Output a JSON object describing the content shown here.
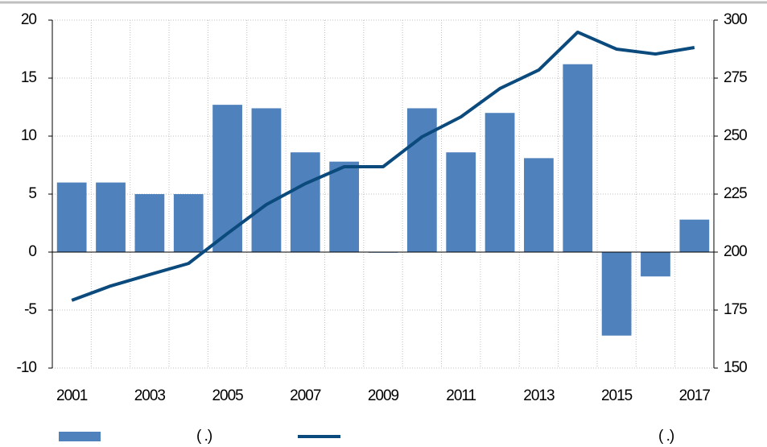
{
  "chart_data": {
    "type": "bar",
    "categories": [
      "2001",
      null,
      "2003",
      null,
      "2005",
      null,
      "2007",
      null,
      "2009",
      null,
      "2011",
      null,
      "2013",
      null,
      "2015",
      null,
      "2017"
    ],
    "series": [
      {
        "name": "(      .)",
        "type": "bar",
        "color": "#4f81bd",
        "values": [
          6,
          6,
          5,
          5,
          12.7,
          12.4,
          8.6,
          7.8,
          0,
          12.4,
          8.6,
          12.0,
          8.1,
          16.2,
          -7.2,
          -2.1,
          2.8
        ]
      },
      {
        "name": "(      .)",
        "type": "line",
        "axis": "y2",
        "color": "#0b4a7d",
        "values": [
          179.2,
          185.4,
          190.3,
          195.1,
          208,
          220.5,
          229.5,
          236.8,
          236.8,
          249.7,
          258.3,
          270.5,
          278.5,
          294.8,
          287.5,
          285.4,
          288.2
        ]
      }
    ],
    "ylim": [
      -10,
      20
    ],
    "yticks": [
      -10,
      -5,
      0,
      5,
      10,
      15,
      20
    ],
    "y2lim": [
      150,
      300
    ],
    "y2ticks": [
      150,
      175,
      200,
      225,
      250,
      275,
      300
    ],
    "grid": true,
    "legend": "bottom"
  }
}
